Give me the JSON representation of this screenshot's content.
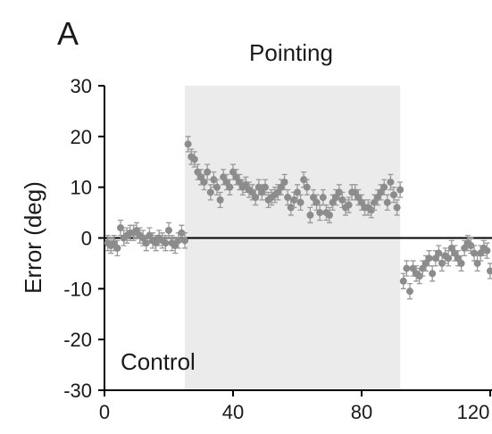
{
  "chart_data": {
    "type": "scatter",
    "panel_label": "A",
    "title": "Pointing",
    "y_label": "Error (deg)",
    "annotation": "Control",
    "color": "#8c8c8c",
    "error_color": "#9a9a9a",
    "shade": [
      25,
      92
    ],
    "shade_color": "#ebebeb",
    "error": 1.5,
    "xlim": [
      0,
      120
    ],
    "ylim": [
      -30,
      30
    ],
    "xticks": [
      0,
      40,
      80,
      120
    ],
    "yticks": [
      -30,
      -20,
      -10,
      0,
      10,
      20,
      30
    ],
    "x": [
      1,
      2,
      3,
      4,
      5,
      6,
      7,
      8,
      9,
      10,
      11,
      12,
      13,
      14,
      15,
      16,
      17,
      18,
      19,
      20,
      21,
      22,
      23,
      24,
      25,
      26,
      27,
      28,
      29,
      30,
      31,
      32,
      33,
      34,
      35,
      36,
      37,
      38,
      39,
      40,
      41,
      42,
      43,
      44,
      45,
      46,
      47,
      48,
      49,
      50,
      51,
      52,
      53,
      54,
      55,
      56,
      57,
      58,
      59,
      60,
      61,
      62,
      63,
      64,
      65,
      66,
      67,
      68,
      69,
      70,
      71,
      72,
      73,
      74,
      75,
      76,
      77,
      78,
      79,
      80,
      81,
      82,
      83,
      84,
      85,
      86,
      87,
      88,
      89,
      90,
      91,
      92,
      93,
      94,
      95,
      96,
      97,
      98,
      99,
      100,
      101,
      102,
      103,
      104,
      105,
      106,
      107,
      108,
      109,
      110,
      111,
      112,
      113,
      114,
      115,
      116,
      117,
      118,
      119,
      120
    ],
    "values": [
      -1,
      -1.5,
      -1,
      -2,
      2,
      0,
      0.5,
      1,
      1,
      1.5,
      0.5,
      0,
      -1,
      0.5,
      -0.5,
      -1,
      0,
      -0.5,
      -1,
      1.5,
      -1,
      -1.5,
      -0.5,
      1,
      -0.5,
      18.5,
      16,
      15.5,
      13,
      12,
      11,
      13,
      9,
      11.5,
      10,
      7.5,
      12,
      11,
      10,
      13,
      12,
      11,
      10,
      10.5,
      9.5,
      9,
      8,
      10,
      9,
      10,
      7.5,
      8,
      8.5,
      9,
      10,
      11,
      8,
      6,
      7.5,
      9,
      7,
      11.5,
      10,
      4.5,
      8,
      7,
      5,
      8,
      5,
      4.5,
      7,
      8,
      9,
      7.5,
      6,
      6.5,
      9,
      9,
      8,
      7,
      6,
      6,
      5.5,
      7,
      8,
      9,
      10,
      7,
      11,
      8.5,
      6,
      9.5,
      -8.5,
      -6,
      -10.5,
      -6,
      -7,
      -7.5,
      -6,
      -5,
      -4,
      -7,
      -4,
      -3,
      -5,
      -3.5,
      -4,
      -2,
      -3,
      -4,
      -5,
      -2,
      -1,
      -1.5,
      -3,
      -5,
      -3,
      -2,
      -2.5,
      -6.5
    ]
  }
}
